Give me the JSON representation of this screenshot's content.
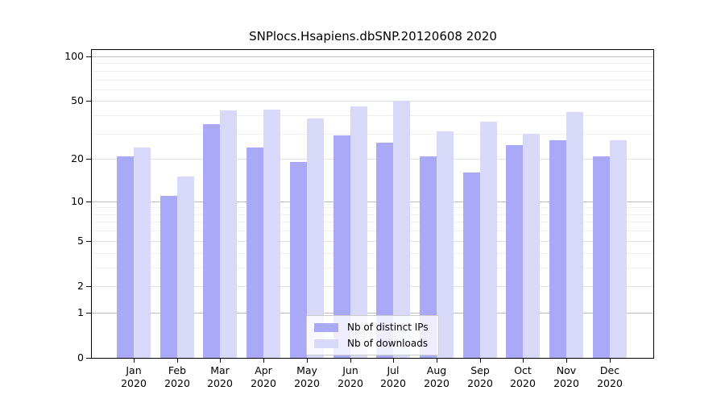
{
  "title": "SNPlocs.Hsapiens.dbSNP.20120608 2020",
  "chart_data": {
    "type": "bar",
    "title": "SNPlocs.Hsapiens.dbSNP.20120608 2020",
    "y_scale": "log1p",
    "ylim": [
      0,
      100
    ],
    "yticks": [
      0,
      1,
      2,
      5,
      10,
      20,
      50,
      100
    ],
    "major_gridlines": [
      1,
      10,
      100
    ],
    "mid_gridlines": [
      2,
      5,
      20,
      50
    ],
    "minor_gridlines": [
      3,
      4,
      6,
      7,
      8,
      9,
      30,
      40,
      60,
      70,
      80,
      90
    ],
    "grid": true,
    "categories": [
      "Jan",
      "Feb",
      "Mar",
      "Apr",
      "May",
      "Jun",
      "Jul",
      "Aug",
      "Sep",
      "Oct",
      "Nov",
      "Dec"
    ],
    "category_year": "2020",
    "series": [
      {
        "name": "Nb of distinct IPs",
        "color": "#a9a9f7",
        "values": [
          21,
          11,
          35,
          24,
          19,
          29,
          26,
          21,
          16,
          25,
          27,
          21
        ]
      },
      {
        "name": "Nb of downloads",
        "color": "#d8d8f9",
        "values": [
          24,
          15,
          43,
          44,
          38,
          46,
          50,
          31,
          36,
          30,
          42,
          27
        ]
      }
    ],
    "legend_position": "bottom-center"
  }
}
